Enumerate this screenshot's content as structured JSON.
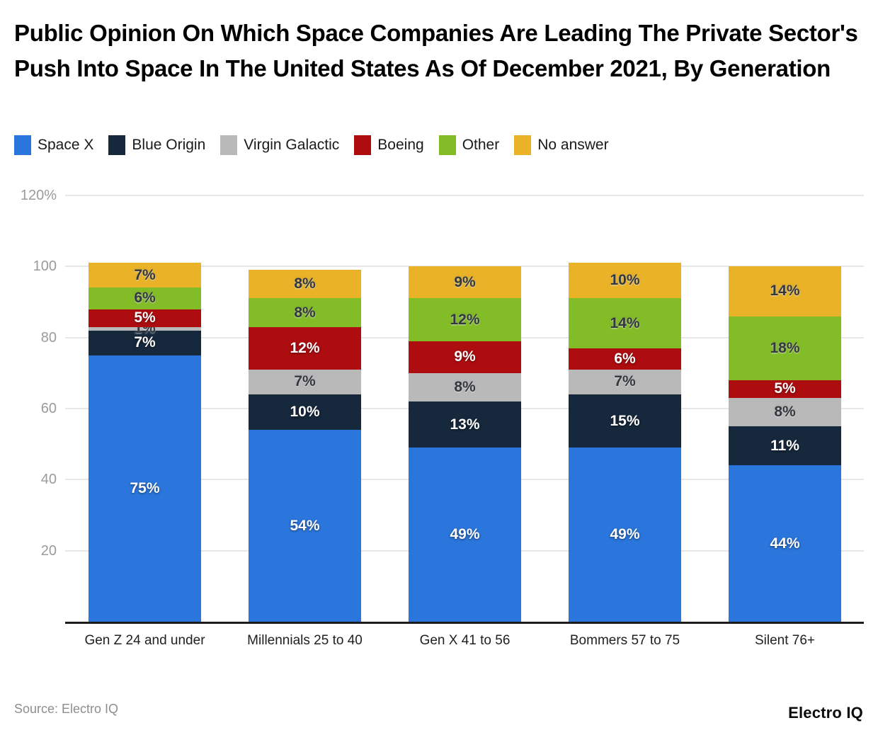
{
  "page": {
    "source": "Source: Electro IQ",
    "brand": "Electro IQ"
  },
  "chart_data": {
    "type": "bar",
    "stacked": true,
    "title": "Public Opinion On Which Space Companies Are Leading The Private Sector's Push Into Space In The United States As Of December 2021, By Generation",
    "categories": [
      "Gen Z 24 and under",
      "Millennials 25 to 40",
      "Gen X 41 to 56",
      "Bommers 57 to 75",
      "Silent 76+"
    ],
    "series": [
      {
        "name": "Space X",
        "color": "#2B76DC",
        "label_color": "#ffffff",
        "label_style": "light",
        "values": [
          75,
          54,
          49,
          49,
          44
        ]
      },
      {
        "name": "Blue Origin",
        "color": "#16283C",
        "label_color": "#ffffff",
        "label_style": "light",
        "values": [
          7,
          10,
          13,
          15,
          11
        ]
      },
      {
        "name": "Virgin Galactic",
        "color": "#B9B9B9",
        "label_color": "#33383F",
        "label_style": "dark",
        "values": [
          1,
          7,
          8,
          7,
          8
        ]
      },
      {
        "name": "Boeing",
        "color": "#AE0D10",
        "label_color": "#ffffff",
        "label_style": "light",
        "values": [
          5,
          12,
          9,
          6,
          5
        ]
      },
      {
        "name": "Other",
        "color": "#82BC26",
        "label_color": "#33383F",
        "label_style": "dark",
        "values": [
          6,
          8,
          12,
          14,
          18
        ]
      },
      {
        "name": "No answer",
        "color": "#E9B227",
        "label_color": "#33383F",
        "label_style": "dark",
        "values": [
          7,
          8,
          9,
          10,
          14
        ]
      }
    ],
    "value_suffix": "%",
    "y_ticks": [
      {
        "value": 120,
        "label": "120%"
      },
      {
        "value": 100,
        "label": "100"
      },
      {
        "value": 80,
        "label": "80"
      },
      {
        "value": 60,
        "label": "60"
      },
      {
        "value": 40,
        "label": "40"
      },
      {
        "value": 20,
        "label": "20"
      }
    ],
    "ylim": [
      0,
      120
    ],
    "grid": true,
    "legend_position": "top",
    "xlabel": "",
    "ylabel": ""
  }
}
